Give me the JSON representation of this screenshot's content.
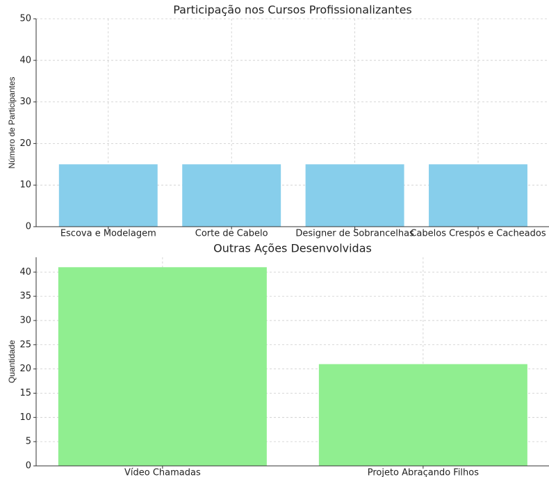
{
  "chart_data": [
    {
      "type": "bar",
      "title": "Participação nos Cursos Profissionalizantes",
      "y_label": "Número de Participantes",
      "categories": [
        "Escova e Modelagem",
        "Corte de Cabelo",
        "Designer de Sobrancelhas",
        "Cabelos Crespos e Cacheados"
      ],
      "values": [
        15,
        15,
        15,
        15
      ],
      "color": "#87ceeb",
      "ylim": [
        0,
        50
      ],
      "yticks": [
        0,
        10,
        20,
        30,
        40,
        50
      ],
      "grid": true
    },
    {
      "type": "bar",
      "title": "Outras Ações Desenvolvidas",
      "y_label": "Quantidade",
      "categories": [
        "Vídeo Chamadas",
        "Projeto Abraçando Filhos"
      ],
      "values": [
        41,
        21
      ],
      "color": "#90ee90",
      "ylim": [
        0,
        43.05
      ],
      "yticks": [
        0,
        5,
        10,
        15,
        20,
        25,
        30,
        35,
        40
      ],
      "grid": true
    }
  ]
}
